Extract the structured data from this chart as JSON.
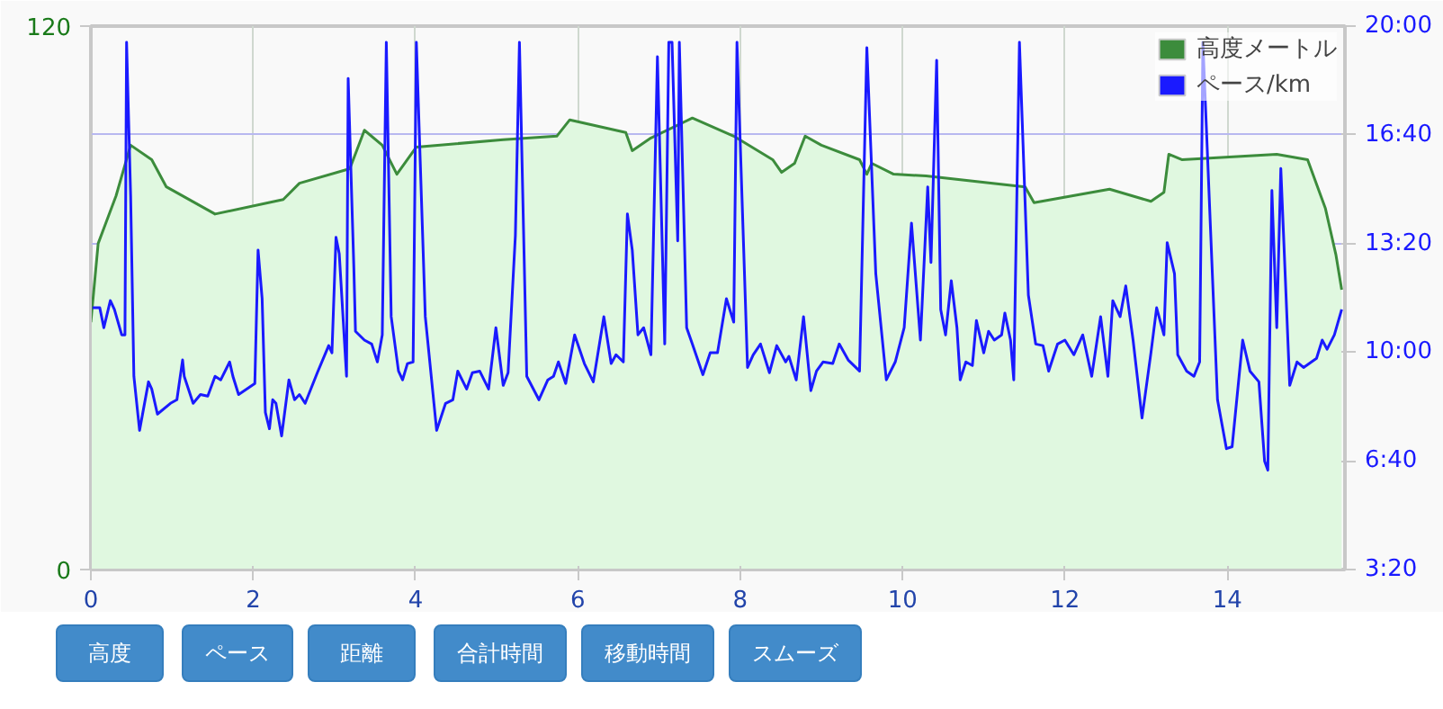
{
  "chart_data": {
    "type": "area",
    "xlim": [
      0,
      15.45
    ],
    "xticks": [
      0,
      2,
      4,
      6,
      8,
      10,
      12,
      14
    ],
    "ylim": [
      0,
      120
    ],
    "yticks": [
      0,
      120
    ],
    "y2lim": [
      3.3333,
      20
    ],
    "y2ticks": [
      {
        "value": 3.3333,
        "label": "3:20"
      },
      {
        "value": 6.6667,
        "label": "6:40"
      },
      {
        "value": 10,
        "label": "10:00"
      },
      {
        "value": 13.3333,
        "label": "13:20"
      },
      {
        "value": 16.6667,
        "label": "16:40"
      },
      {
        "value": 20,
        "label": "20:00"
      }
    ],
    "grid": true,
    "legend": "top right",
    "marker": "none",
    "line_style": "solid",
    "series": [
      {
        "name": "高度メートル",
        "color": "#3c8c3c",
        "x": [
          0.0,
          0.09,
          0.31,
          0.49,
          0.75,
          0.93,
          1.53,
          2.37,
          2.57,
          3.19,
          3.37,
          3.59,
          3.77,
          4.01,
          5.08,
          5.74,
          5.9,
          6.59,
          6.67,
          6.9,
          7.41,
          7.92,
          8.4,
          8.51,
          8.67,
          8.8,
          9.0,
          9.47,
          9.56,
          9.62,
          9.89,
          10.29,
          11.51,
          11.62,
          12.55,
          13.06,
          13.22,
          13.28,
          13.44,
          14.61,
          14.99,
          15.21,
          15.34,
          15.41
        ],
        "values": [
          54.6,
          72,
          82.5,
          93.7,
          90.5,
          84.5,
          78.5,
          81.7,
          85.3,
          88.5,
          97,
          93.7,
          87.3,
          93.3,
          94.9,
          95.7,
          99.3,
          96.5,
          92.5,
          95.3,
          99.7,
          95.7,
          90.5,
          87.7,
          89.7,
          95.7,
          93.7,
          90.5,
          87.3,
          89.7,
          87.3,
          86.9,
          84.5,
          81,
          84,
          81.3,
          83.3,
          91.7,
          90.5,
          91.7,
          90.5,
          79.7,
          69.4,
          61.8
        ]
      },
      {
        "name": "ペース/km",
        "type": "line",
        "axis": "y2",
        "color": "#1a1aff",
        "x": [
          0.02,
          0.11,
          0.16,
          0.24,
          0.29,
          0.38,
          0.42,
          0.44,
          0.49,
          0.53,
          0.6,
          0.71,
          0.75,
          0.82,
          0.98,
          1.06,
          1.13,
          1.15,
          1.26,
          1.35,
          1.44,
          1.53,
          1.6,
          1.71,
          1.75,
          1.82,
          2.02,
          2.06,
          2.11,
          2.15,
          2.2,
          2.24,
          2.28,
          2.35,
          2.44,
          2.51,
          2.57,
          2.64,
          2.79,
          2.93,
          2.97,
          3.02,
          3.06,
          3.15,
          3.17,
          3.24,
          3.26,
          3.37,
          3.46,
          3.53,
          3.59,
          3.64,
          3.7,
          3.79,
          3.84,
          3.9,
          3.97,
          4.01,
          4.12,
          4.26,
          4.37,
          4.46,
          4.52,
          4.63,
          4.7,
          4.79,
          4.9,
          4.99,
          5.08,
          5.14,
          5.23,
          5.28,
          5.37,
          5.52,
          5.63,
          5.7,
          5.76,
          5.85,
          5.96,
          6.08,
          6.19,
          6.32,
          6.41,
          6.47,
          6.56,
          6.61,
          6.67,
          6.74,
          6.81,
          6.9,
          6.98,
          7.07,
          7.12,
          7.16,
          7.23,
          7.25,
          7.34,
          7.41,
          7.54,
          7.63,
          7.72,
          7.83,
          7.92,
          7.96,
          8.09,
          8.16,
          8.25,
          8.36,
          8.45,
          8.56,
          8.6,
          8.69,
          8.78,
          8.87,
          8.94,
          9.02,
          9.14,
          9.22,
          9.33,
          9.47,
          9.56,
          9.67,
          9.8,
          9.91,
          10.02,
          10.11,
          10.22,
          10.31,
          10.35,
          10.42,
          10.47,
          10.53,
          10.6,
          10.67,
          10.71,
          10.78,
          10.86,
          10.91,
          11.0,
          11.06,
          11.13,
          11.22,
          11.26,
          11.33,
          11.37,
          11.44,
          11.55,
          11.64,
          11.73,
          11.8,
          11.91,
          12.0,
          12.11,
          12.22,
          12.33,
          12.44,
          12.53,
          12.59,
          12.68,
          12.75,
          12.84,
          12.95,
          13.06,
          13.13,
          13.22,
          13.26,
          13.35,
          13.39,
          13.5,
          13.59,
          13.66,
          13.7,
          13.88,
          13.99,
          14.06,
          14.19,
          14.28,
          14.39,
          14.46,
          14.5,
          14.55,
          14.61,
          14.66,
          14.77,
          14.86,
          14.94,
          15.1,
          15.17,
          15.23,
          15.32,
          15.41
        ],
        "values": [
          11.36,
          11.36,
          10.75,
          11.58,
          11.31,
          10.53,
          10.53,
          19.5,
          14.8,
          9.26,
          7.6,
          9.09,
          8.87,
          8.1,
          8.43,
          8.54,
          9.76,
          9.26,
          8.43,
          8.7,
          8.65,
          9.26,
          9.15,
          9.7,
          9.26,
          8.7,
          9.04,
          13.13,
          11.64,
          8.15,
          7.65,
          8.54,
          8.43,
          7.43,
          9.15,
          8.54,
          8.7,
          8.43,
          9.37,
          10.2,
          9.98,
          13.52,
          13.02,
          9.26,
          18.39,
          12.58,
          10.64,
          10.37,
          10.25,
          9.7,
          10.53,
          19.5,
          11.09,
          9.42,
          9.15,
          9.65,
          9.7,
          19.5,
          11.09,
          7.6,
          8.43,
          8.54,
          9.42,
          8.87,
          9.37,
          9.42,
          8.87,
          10.75,
          8.98,
          9.37,
          13.58,
          19.5,
          9.26,
          8.54,
          9.15,
          9.26,
          9.7,
          9.04,
          10.53,
          9.65,
          9.09,
          11.09,
          9.65,
          9.92,
          9.7,
          14.24,
          13.13,
          10.53,
          10.75,
          9.92,
          19.06,
          10.25,
          19.5,
          19.5,
          13.41,
          19.5,
          10.75,
          10.25,
          9.31,
          9.98,
          9.98,
          11.64,
          10.92,
          19.5,
          9.53,
          9.92,
          10.25,
          9.37,
          10.2,
          9.7,
          9.87,
          9.15,
          11.09,
          8.82,
          9.42,
          9.7,
          9.65,
          10.25,
          9.76,
          9.42,
          19.34,
          12.41,
          9.15,
          9.7,
          10.75,
          13.96,
          10.37,
          15.07,
          12.75,
          18.95,
          11.31,
          10.53,
          12.19,
          10.75,
          9.15,
          9.7,
          9.59,
          10.97,
          9.98,
          10.64,
          10.37,
          10.53,
          11.2,
          10.37,
          9.15,
          19.5,
          11.75,
          10.25,
          10.2,
          9.42,
          10.25,
          10.37,
          9.92,
          10.53,
          9.26,
          11.09,
          9.26,
          11.58,
          11.09,
          12.03,
          10.37,
          7.98,
          9.98,
          11.36,
          10.53,
          13.36,
          12.41,
          9.92,
          9.42,
          9.26,
          9.7,
          19.5,
          8.54,
          7.04,
          7.1,
          10.37,
          9.42,
          9.09,
          6.66,
          6.38,
          14.96,
          10.75,
          15.63,
          8.98,
          9.7,
          9.53,
          9.81,
          10.37,
          10.09,
          10.53,
          11.31
        ]
      }
    ],
    "annotations": [
      "高度",
      "ペース",
      "距離",
      "合計時間",
      "移動時間",
      "スムーズ"
    ]
  }
}
